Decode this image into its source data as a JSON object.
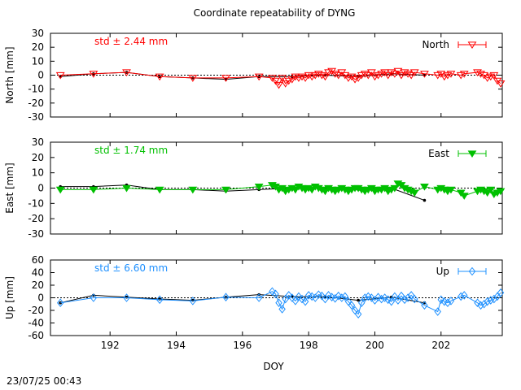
{
  "footer": {
    "timestamp": "23/07/25 00:43"
  },
  "chart_data": {
    "type": "line",
    "title": "Coordinate repeatability of DYNG",
    "xlabel": "DOY",
    "xlim": [
      190.2,
      203.85
    ],
    "xticks": [
      192,
      194,
      196,
      198,
      200,
      202
    ],
    "panels": [
      {
        "name": "north",
        "ylabel": "North [mm]",
        "ylim": [
          -30,
          30
        ],
        "yticks": [
          -30,
          -20,
          -10,
          0,
          10,
          20,
          30
        ],
        "std_label": "std ± 2.44 mm",
        "legend": "North",
        "color": "#ff0000",
        "marker": "triangle-down-open",
        "daily": {
          "x": [
            190.5,
            191.5,
            192.5,
            193.5,
            194.5,
            195.5,
            196.5,
            197.5,
            198.5,
            199.5,
            200.5,
            201.5
          ],
          "y": [
            -1,
            1,
            2,
            -1,
            -2,
            -3,
            -1,
            -1,
            0,
            -1,
            1,
            0
          ]
        },
        "series": {
          "x": [
            190.5,
            191.5,
            192.5,
            193.5,
            194.5,
            195.5,
            196.5,
            196.9,
            197.0,
            197.1,
            197.2,
            197.3,
            197.4,
            197.5,
            197.6,
            197.7,
            197.8,
            197.9,
            198.0,
            198.1,
            198.2,
            198.3,
            198.4,
            198.5,
            198.6,
            198.7,
            198.8,
            198.9,
            199.0,
            199.1,
            199.2,
            199.3,
            199.4,
            199.5,
            199.6,
            199.7,
            199.8,
            199.9,
            200.0,
            200.1,
            200.2,
            200.3,
            200.4,
            200.5,
            200.6,
            200.7,
            200.8,
            200.9,
            201.0,
            201.1,
            201.2,
            201.5,
            201.9,
            202.0,
            202.1,
            202.2,
            202.3,
            202.6,
            202.7,
            203.1,
            203.2,
            203.3,
            203.4,
            203.5,
            203.6,
            203.7,
            203.8
          ],
          "y": [
            0,
            1,
            2,
            -1,
            -2,
            -2,
            -1,
            -2,
            -4,
            -7,
            -2,
            -6,
            -4,
            -3,
            -1,
            -2,
            -1,
            -2,
            0,
            -1,
            0,
            1,
            0,
            -1,
            2,
            3,
            1,
            0,
            2,
            0,
            -2,
            -1,
            -3,
            -2,
            0,
            1,
            0,
            2,
            -1,
            0,
            1,
            2,
            0,
            2,
            1,
            3,
            0,
            2,
            1,
            0,
            2,
            1,
            0,
            1,
            -1,
            0,
            1,
            0,
            1,
            2,
            1,
            0,
            -2,
            -1,
            0,
            -4,
            -6
          ]
        }
      },
      {
        "name": "east",
        "ylabel": "East [mm]",
        "ylim": [
          -30,
          30
        ],
        "yticks": [
          -30,
          -20,
          -10,
          0,
          10,
          20,
          30
        ],
        "std_label": "std ± 1.74 mm",
        "legend": "East",
        "color": "#00c000",
        "marker": "triangle-down-filled",
        "daily": {
          "x": [
            190.5,
            191.5,
            192.5,
            193.5,
            194.5,
            195.5,
            196.5,
            197.5,
            198.5,
            199.5,
            200.5,
            201.5
          ],
          "y": [
            1,
            1,
            2,
            -1,
            -1,
            -2,
            -1,
            0,
            0,
            -1,
            0,
            -8
          ]
        },
        "series": {
          "x": [
            190.5,
            191.5,
            192.5,
            193.5,
            194.5,
            195.5,
            196.5,
            196.9,
            197.0,
            197.1,
            197.2,
            197.3,
            197.4,
            197.5,
            197.6,
            197.7,
            197.8,
            197.9,
            198.0,
            198.1,
            198.2,
            198.3,
            198.4,
            198.5,
            198.6,
            198.7,
            198.8,
            198.9,
            199.0,
            199.1,
            199.2,
            199.3,
            199.4,
            199.5,
            199.6,
            199.7,
            199.8,
            199.9,
            200.0,
            200.1,
            200.2,
            200.3,
            200.4,
            200.5,
            200.6,
            200.7,
            200.8,
            200.9,
            201.0,
            201.1,
            201.2,
            201.5,
            201.9,
            202.0,
            202.1,
            202.2,
            202.3,
            202.6,
            202.7,
            203.1,
            203.2,
            203.3,
            203.4,
            203.5,
            203.6,
            203.7,
            203.8
          ],
          "y": [
            -1,
            -1,
            0,
            -1,
            -1,
            -1,
            1,
            2,
            1,
            -1,
            0,
            -2,
            -1,
            0,
            -1,
            1,
            0,
            -1,
            0,
            -1,
            1,
            0,
            -1,
            -2,
            0,
            -1,
            -2,
            -1,
            0,
            -1,
            -2,
            -1,
            0,
            0,
            -1,
            -2,
            -1,
            0,
            -2,
            -1,
            -1,
            0,
            -2,
            -1,
            0,
            3,
            2,
            0,
            -1,
            -2,
            -3,
            1,
            -1,
            0,
            -1,
            -2,
            -1,
            -3,
            -5,
            -2,
            -1,
            -2,
            -3,
            -1,
            -4,
            -3,
            -2
          ]
        }
      },
      {
        "name": "up",
        "ylabel": "Up [mm]",
        "ylim": [
          -60,
          60
        ],
        "yticks": [
          -60,
          -40,
          -20,
          0,
          20,
          40,
          60
        ],
        "std_label": "std ± 6.60 mm",
        "legend": "Up",
        "color": "#1e90ff",
        "marker": "diamond-open",
        "daily": {
          "x": [
            190.5,
            191.5,
            192.5,
            193.5,
            194.5,
            195.5,
            196.5,
            197.5,
            198.5,
            199.5,
            200.5,
            201.5
          ],
          "y": [
            -8,
            4,
            1,
            -2,
            -4,
            1,
            5,
            2,
            2,
            -4,
            1,
            -8
          ]
        },
        "series": {
          "x": [
            190.5,
            191.5,
            192.5,
            193.5,
            194.5,
            195.5,
            196.5,
            196.9,
            197.0,
            197.1,
            197.2,
            197.3,
            197.4,
            197.5,
            197.6,
            197.7,
            197.8,
            197.9,
            198.0,
            198.1,
            198.2,
            198.3,
            198.4,
            198.5,
            198.6,
            198.7,
            198.8,
            198.9,
            199.0,
            199.1,
            199.2,
            199.3,
            199.4,
            199.5,
            199.6,
            199.7,
            199.8,
            199.9,
            200.0,
            200.1,
            200.2,
            200.3,
            200.4,
            200.5,
            200.6,
            200.7,
            200.8,
            200.9,
            201.0,
            201.1,
            201.2,
            201.5,
            201.9,
            202.0,
            202.1,
            202.2,
            202.3,
            202.6,
            202.7,
            203.1,
            203.2,
            203.3,
            203.4,
            203.5,
            203.6,
            203.7,
            203.8
          ],
          "y": [
            -8,
            0,
            0,
            -3,
            -5,
            1,
            0,
            10,
            6,
            -8,
            -18,
            -2,
            4,
            0,
            -5,
            2,
            -2,
            -6,
            4,
            2,
            0,
            5,
            3,
            -2,
            4,
            1,
            -1,
            3,
            0,
            2,
            -6,
            -12,
            -20,
            -26,
            -8,
            0,
            2,
            0,
            -4,
            1,
            -2,
            0,
            -3,
            -6,
            2,
            -4,
            3,
            -3,
            0,
            4,
            -2,
            -12,
            -22,
            -3,
            -6,
            -8,
            -5,
            2,
            4,
            -8,
            -12,
            -10,
            -6,
            -4,
            -2,
            2,
            8
          ]
        }
      }
    ]
  }
}
